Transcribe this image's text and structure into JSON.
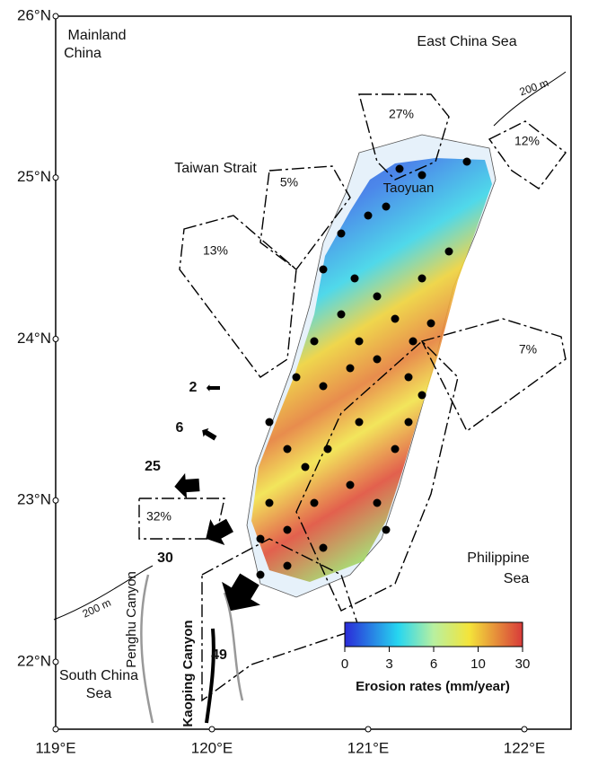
{
  "map": {
    "lat_ticks": [
      {
        "value": 26,
        "label": "26°N"
      },
      {
        "value": 25,
        "label": "25°N"
      },
      {
        "value": 24,
        "label": "24°N"
      },
      {
        "value": 23,
        "label": "23°N"
      },
      {
        "value": 22,
        "label": "22°N"
      }
    ],
    "lon_ticks": [
      {
        "value": 119,
        "label": "119°E"
      },
      {
        "value": 120,
        "label": "120°E"
      },
      {
        "value": 121,
        "label": "121°E"
      },
      {
        "value": 122,
        "label": "122°E"
      }
    ],
    "labels": {
      "mainland_china": [
        "Mainland",
        "China"
      ],
      "east_china_sea": "East China Sea",
      "taiwan_strait": "Taiwan Strait",
      "taoyuan": "Taoyuan",
      "philippine_sea": [
        "Philippine",
        "Sea"
      ],
      "south_china_sea": [
        "South China",
        "Sea"
      ],
      "penghu_canyon": "Penghu Canyon",
      "kaoping_canyon": "Kaoping Canyon",
      "isobath": [
        "200 m",
        "200 m"
      ]
    },
    "sediment_shares": [
      "27%",
      "12%",
      "5%",
      "13%",
      "7%",
      "32%"
    ],
    "flux_arrows": [
      2,
      6,
      25,
      30,
      49
    ],
    "legend": {
      "title": "Erosion rates (mm/year)",
      "ticks": [
        0,
        3,
        6,
        10,
        30
      ]
    }
  }
}
